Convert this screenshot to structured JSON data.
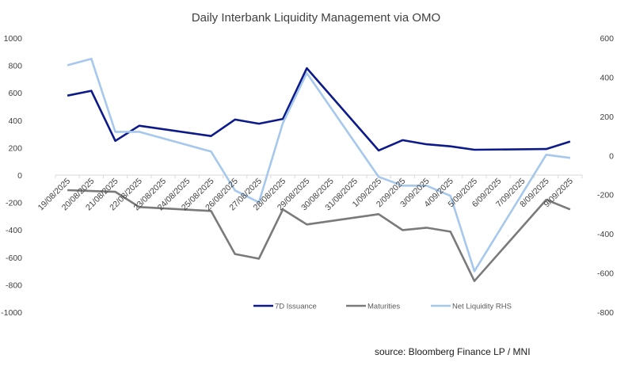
{
  "chart_data": {
    "type": "line",
    "title": "Daily Interbank Liquidity Management via OMO",
    "categories": [
      "19/08/2025",
      "20/08/2025",
      "21/08/2025",
      "22/08/2025",
      "23/08/2025",
      "24/08/2025",
      "25/08/2025",
      "26/08/2025",
      "27/08/2025",
      "28/08/2025",
      "29/08/2025",
      "30/08/2025",
      "31/08/2025",
      "1/09/2025",
      "2/09/2025",
      "3/09/2025",
      "4/09/2025",
      "5/09/2025",
      "6/09/2025",
      "7/09/2025",
      "8/09/2025",
      "9/09/2025"
    ],
    "y_left": {
      "range": [
        -1000,
        1000
      ],
      "ticks": [
        1000,
        800,
        600,
        400,
        200,
        0,
        -200,
        -400,
        -600,
        -800,
        -1000
      ]
    },
    "y_right": {
      "range": [
        -800,
        600
      ],
      "ticks": [
        600,
        400,
        200,
        0,
        -200,
        -400,
        -600,
        -800
      ]
    },
    "grid": false,
    "legend_position": "bottom-right",
    "series": [
      {
        "name": "7D Issuance",
        "axis": "left",
        "color": "#0d1a8a",
        "values": [
          580,
          615,
          250,
          360,
          null,
          null,
          285,
          405,
          375,
          410,
          780,
          null,
          null,
          180,
          255,
          225,
          210,
          185,
          null,
          null,
          190,
          245
        ]
      },
      {
        "name": "Maturities",
        "axis": "left",
        "color": "#7a7a7a",
        "values": [
          -110,
          -116,
          -122,
          -233,
          null,
          null,
          -262,
          -576,
          -610,
          -250,
          -360,
          null,
          null,
          -285,
          -401,
          -384,
          -413,
          -773,
          null,
          null,
          -180,
          -250
        ]
      },
      {
        "name": "Net Liquidity RHS",
        "axis": "right",
        "color": "#a6c8ec",
        "values": [
          461,
          494,
          121,
          121,
          null,
          null,
          20,
          -178,
          -239,
          166,
          421,
          null,
          null,
          -109,
          -154,
          -154,
          -206,
          -591,
          null,
          null,
          4,
          -12
        ]
      }
    ]
  },
  "source": "source: Bloomberg Finance LP / MNI"
}
